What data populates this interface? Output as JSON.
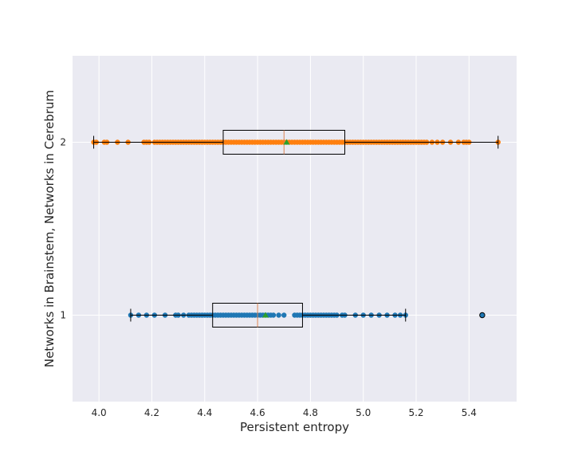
{
  "chart_data": {
    "type": "boxplot",
    "orientation": "horizontal",
    "title": "",
    "xlabel": "Persistent entropy",
    "ylabel": "Networks in Brainstem, Networks in Cerebrum",
    "xlim": [
      3.9,
      5.58
    ],
    "ylim": [
      0.5,
      2.5
    ],
    "grid": true,
    "xticks": [
      4.0,
      4.2,
      4.4,
      4.6,
      4.8,
      5.0,
      5.2,
      5.4
    ],
    "xtick_labels": [
      "4.0",
      "4.2",
      "4.4",
      "4.6",
      "4.8",
      "5.0",
      "5.2",
      "5.4"
    ],
    "yticks": [
      1,
      2
    ],
    "ytick_labels": [
      "1",
      "2"
    ],
    "colors": {
      "background": "#eaeaf2",
      "grid": "#ffffff",
      "box": "#000000",
      "median": "#dd8452",
      "mean": "#2ca02c",
      "group1": "#1f77b4",
      "group2": "#ff7f0e"
    },
    "boxes": [
      {
        "position": 1,
        "color": "#1f77b4",
        "whisker_low": 4.12,
        "q1": 4.43,
        "median": 4.6,
        "q3": 4.77,
        "whisker_high": 5.16,
        "mean": 4.63,
        "outliers": [
          5.45
        ],
        "points": [
          4.12,
          4.15,
          4.18,
          4.21,
          4.25,
          4.29,
          4.3,
          4.32,
          4.34,
          4.35,
          4.36,
          4.37,
          4.38,
          4.39,
          4.4,
          4.41,
          4.42,
          4.43,
          4.44,
          4.45,
          4.46,
          4.47,
          4.48,
          4.49,
          4.5,
          4.51,
          4.52,
          4.53,
          4.54,
          4.55,
          4.56,
          4.57,
          4.58,
          4.59,
          4.6,
          4.61,
          4.62,
          4.63,
          4.64,
          4.65,
          4.66,
          4.68,
          4.7,
          4.74,
          4.75,
          4.76,
          4.77,
          4.78,
          4.79,
          4.8,
          4.81,
          4.82,
          4.83,
          4.84,
          4.85,
          4.86,
          4.87,
          4.88,
          4.89,
          4.9,
          4.92,
          4.93,
          4.97,
          5.0,
          5.03,
          5.06,
          5.09,
          5.12,
          5.14,
          5.16,
          5.45
        ]
      },
      {
        "position": 2,
        "color": "#ff7f0e",
        "whisker_low": 3.98,
        "q1": 4.47,
        "median": 4.7,
        "q3": 4.93,
        "whisker_high": 5.51,
        "mean": 4.71,
        "outliers": [],
        "points": [
          3.98,
          3.99,
          4.02,
          4.03,
          4.07,
          4.11,
          4.17,
          4.18,
          4.19,
          4.21,
          4.22,
          4.23,
          4.24,
          4.25,
          4.26,
          4.27,
          4.28,
          4.29,
          4.3,
          4.31,
          4.32,
          4.33,
          4.34,
          4.35,
          4.36,
          4.37,
          4.38,
          4.39,
          4.4,
          4.41,
          4.42,
          4.43,
          4.44,
          4.45,
          4.46,
          4.47,
          4.48,
          4.49,
          4.5,
          4.51,
          4.52,
          4.53,
          4.54,
          4.55,
          4.56,
          4.57,
          4.58,
          4.59,
          4.6,
          4.61,
          4.62,
          4.63,
          4.64,
          4.65,
          4.66,
          4.67,
          4.68,
          4.69,
          4.7,
          4.71,
          4.72,
          4.73,
          4.74,
          4.75,
          4.76,
          4.77,
          4.78,
          4.79,
          4.8,
          4.81,
          4.82,
          4.83,
          4.84,
          4.85,
          4.86,
          4.87,
          4.88,
          4.89,
          4.9,
          4.91,
          4.92,
          4.93,
          4.94,
          4.95,
          4.96,
          4.97,
          4.98,
          4.99,
          5.0,
          5.01,
          5.02,
          5.03,
          5.04,
          5.05,
          5.06,
          5.07,
          5.08,
          5.09,
          5.1,
          5.11,
          5.12,
          5.13,
          5.14,
          5.15,
          5.16,
          5.17,
          5.18,
          5.19,
          5.2,
          5.21,
          5.22,
          5.23,
          5.24,
          5.26,
          5.28,
          5.3,
          5.33,
          5.36,
          5.38,
          5.39,
          5.4,
          5.51
        ]
      }
    ]
  }
}
